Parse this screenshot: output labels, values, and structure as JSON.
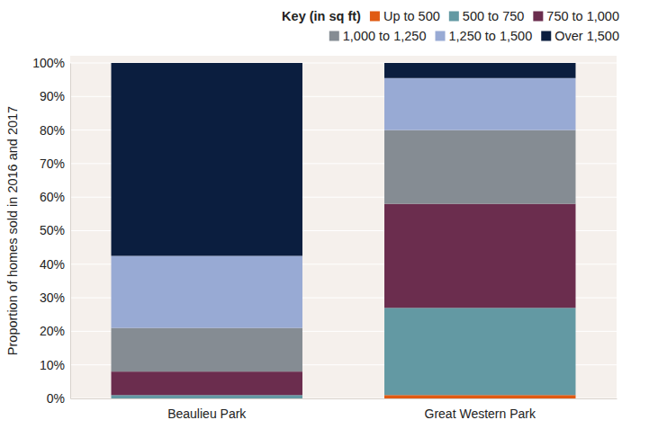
{
  "chart_data": {
    "type": "bar",
    "stacked": true,
    "legend_title": "Key (in sq ft)",
    "y_label": "Proportion of homes sold in 2016 and 2017",
    "categories": [
      "Beaulieu Park",
      "Great Western Park"
    ],
    "series": [
      {
        "name": "Up to 500",
        "color": "#e05a12",
        "values": [
          0,
          1
        ]
      },
      {
        "name": "500 to 750",
        "color": "#6399a3",
        "values": [
          1,
          26
        ]
      },
      {
        "name": "750 to 1,000",
        "color": "#6b2d4e",
        "values": [
          7,
          31
        ]
      },
      {
        "name": "1,000 to 1,250",
        "color": "#858c93",
        "values": [
          13,
          22
        ]
      },
      {
        "name": "1,250 to 1,500",
        "color": "#98aad4",
        "values": [
          21.5,
          15.5
        ]
      },
      {
        "name": "Over 1,500",
        "color": "#0b1e3f",
        "values": [
          57.5,
          4.5
        ]
      }
    ],
    "ylim": [
      0,
      100
    ],
    "yticks": [
      {
        "value": 0,
        "label": "0%"
      },
      {
        "value": 10,
        "label": "10%"
      },
      {
        "value": 20,
        "label": "20%"
      },
      {
        "value": 30,
        "label": "30%"
      },
      {
        "value": 40,
        "label": "40%"
      },
      {
        "value": 50,
        "label": "50%"
      },
      {
        "value": 60,
        "label": "60%"
      },
      {
        "value": 70,
        "label": "70%"
      },
      {
        "value": 80,
        "label": "80%"
      },
      {
        "value": 90,
        "label": "90%"
      },
      {
        "value": 100,
        "label": "100%"
      }
    ],
    "grid": true,
    "legend": "top-right"
  }
}
